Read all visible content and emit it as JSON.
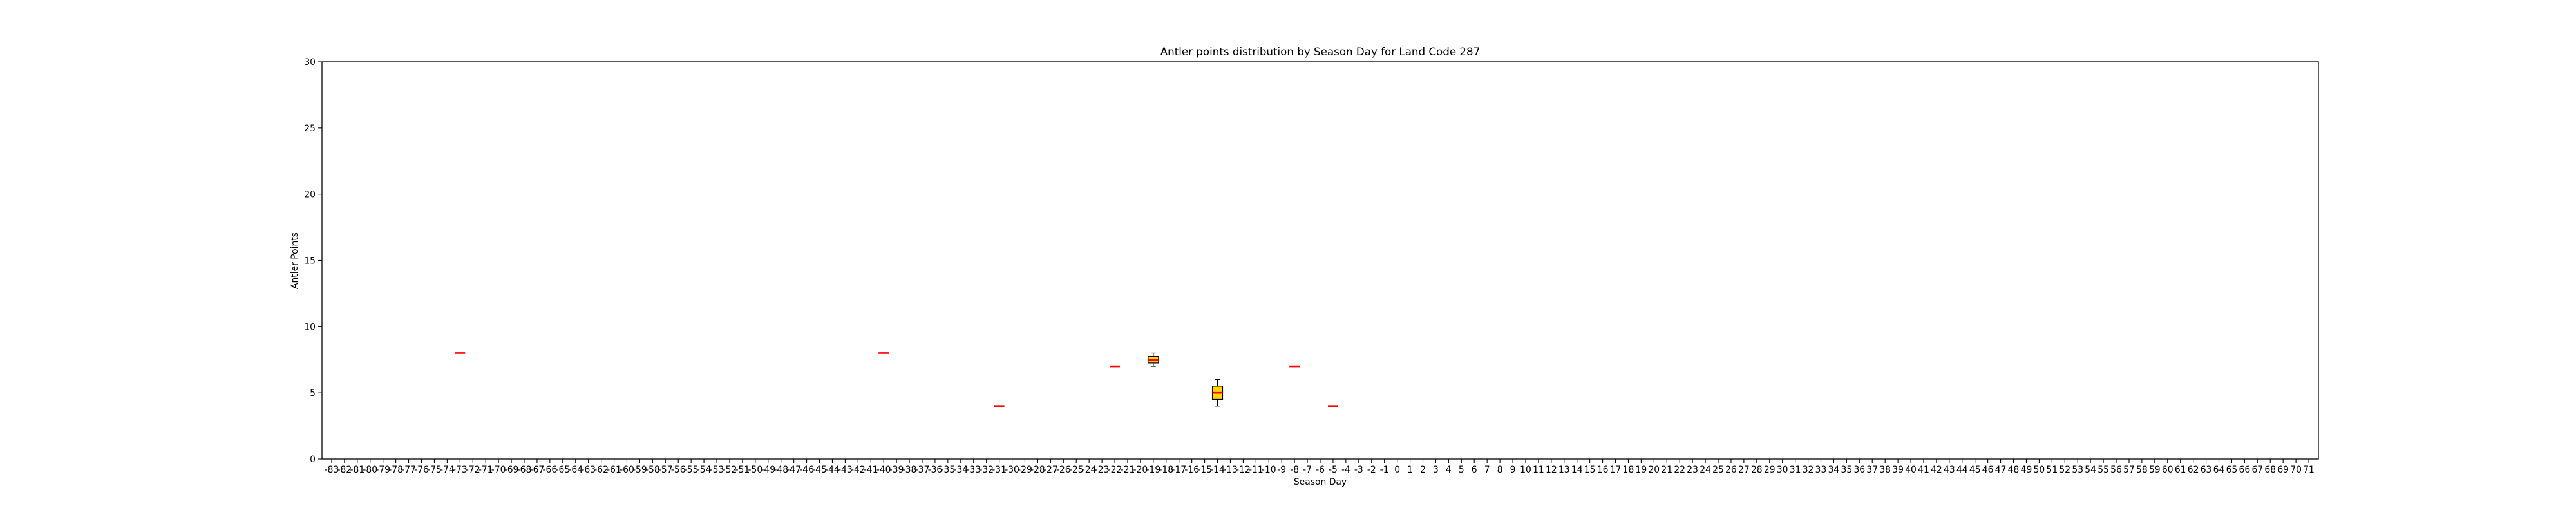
{
  "chart_data": {
    "type": "box",
    "title": "Antler points distribution by Season Day for Land Code 287",
    "xlabel": "Season Day",
    "ylabel": "Antler Points",
    "ylim": [
      0,
      30
    ],
    "yticks": [
      0,
      5,
      10,
      15,
      20,
      25,
      30
    ],
    "x_range": [
      -83,
      71
    ],
    "grid": false,
    "boxes": [
      {
        "x": -73,
        "min": 8,
        "q1": 8,
        "median": 8,
        "q3": 8,
        "max": 8
      },
      {
        "x": -40,
        "min": 8,
        "q1": 8,
        "median": 8,
        "q3": 8,
        "max": 8
      },
      {
        "x": -31,
        "min": 4,
        "q1": 4,
        "median": 4,
        "q3": 4,
        "max": 4
      },
      {
        "x": -22,
        "min": 7,
        "q1": 7,
        "median": 7,
        "q3": 7,
        "max": 7
      },
      {
        "x": -19,
        "min": 7,
        "q1": 7.25,
        "median": 7.5,
        "q3": 7.75,
        "max": 8
      },
      {
        "x": -14,
        "min": 4,
        "q1": 4.5,
        "median": 5,
        "q3": 5.5,
        "max": 6
      },
      {
        "x": -8,
        "min": 7,
        "q1": 7,
        "median": 7,
        "q3": 7,
        "max": 7
      },
      {
        "x": -5,
        "min": 4,
        "q1": 4,
        "median": 4,
        "q3": 4,
        "max": 4
      }
    ],
    "colors": {
      "box_fill": "#ffd700",
      "median": "#ff0000",
      "edge": "#000000",
      "axis": "#000000"
    }
  }
}
